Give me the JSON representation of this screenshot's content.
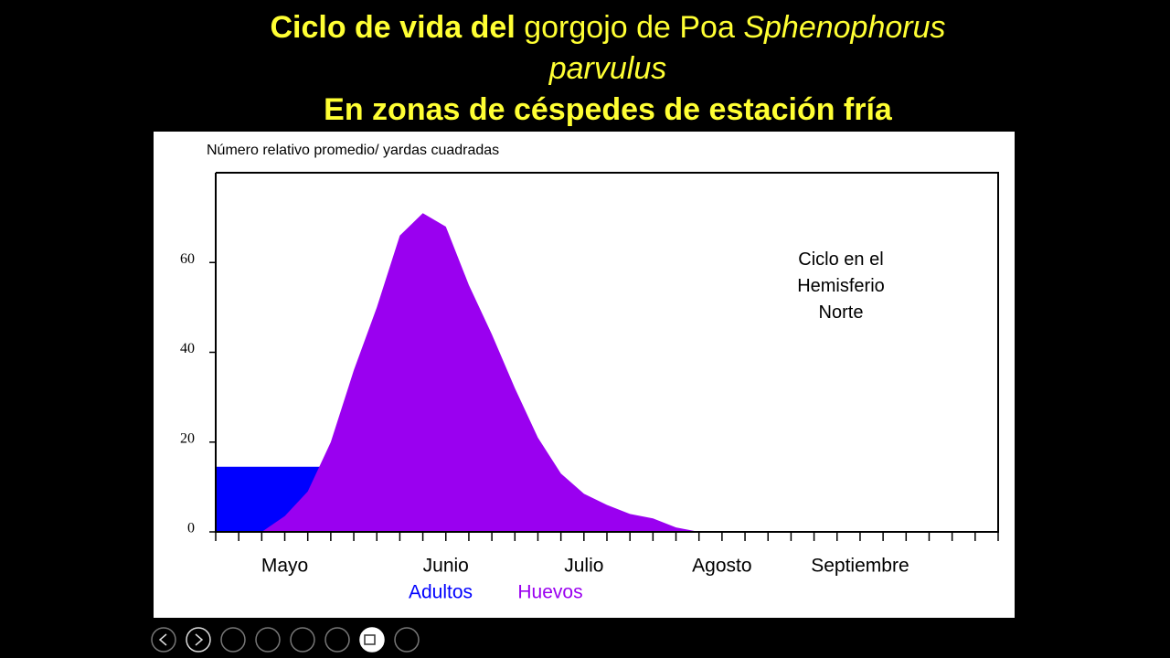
{
  "chart_data": {
    "type": "area",
    "title": {
      "bold": "Ciclo de vida del",
      "normal": "gorgojo de Poa",
      "italic": "Sphenophorus parvulus"
    },
    "subtitle": "En zonas de céspedes de estación fría",
    "y_label": "Número relativo promedio/ yardas cuadradas",
    "annotation": "Ciclo en el Hemisferio Norte",
    "categories": [
      null,
      null,
      null,
      "Mayo",
      null,
      null,
      null,
      null,
      null,
      null,
      "Junio",
      null,
      null,
      null,
      null,
      null,
      "Julio",
      null,
      null,
      null,
      null,
      null,
      "Agosto",
      null,
      null,
      null,
      null,
      null,
      "Septiembre",
      null,
      null,
      null,
      null,
      null,
      null
    ],
    "series": [
      {
        "name": "Adultos",
        "color": "#0000ff",
        "values": [
          14.5,
          14.5,
          14.5,
          14.5,
          14.5,
          14.5,
          null,
          null,
          null,
          null,
          null,
          null,
          null,
          null,
          null,
          null,
          null,
          null,
          null,
          null,
          null,
          null,
          null,
          null,
          null,
          null,
          null,
          null,
          null,
          null,
          null,
          null,
          null,
          null,
          null
        ]
      },
      {
        "name": "Huevos",
        "color": "#9a00f0",
        "values": [
          null,
          null,
          0,
          3.5,
          9,
          20,
          36,
          50,
          66,
          71,
          68,
          55,
          44,
          32,
          21,
          13,
          8.5,
          6,
          4,
          3,
          1,
          0,
          null,
          null,
          null,
          null,
          null,
          null,
          null,
          null,
          null,
          null,
          null,
          null,
          null
        ]
      }
    ],
    "ylim": [
      0,
      80
    ],
    "yticks": [
      0,
      20,
      40,
      60
    ]
  }
}
